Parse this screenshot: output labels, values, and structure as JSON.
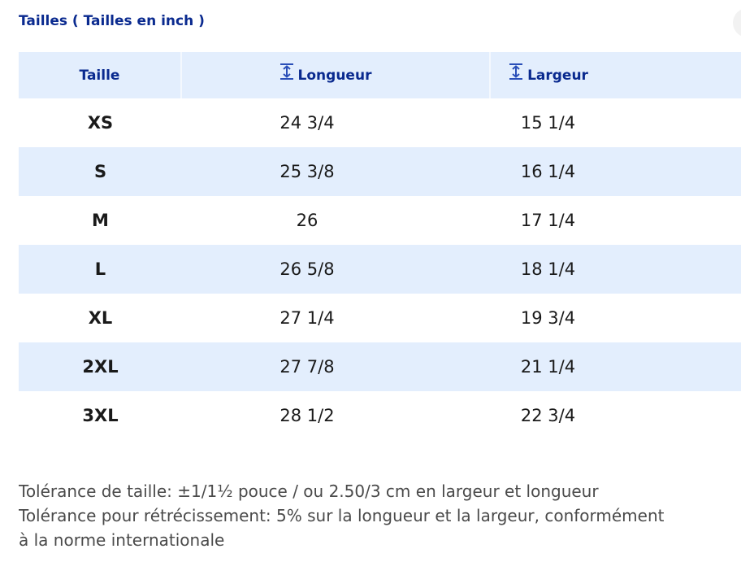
{
  "title": "Tailles ( Tailles en inch )",
  "table": {
    "headers": {
      "size": "Taille",
      "length": "Longueur",
      "width": "Largeur"
    },
    "header_icon": "vertical-measure-icon",
    "rows": [
      {
        "size": "XS",
        "length": "24 3/4",
        "width": "15 1/4"
      },
      {
        "size": "S",
        "length": "25 3/8",
        "width": "16 1/4"
      },
      {
        "size": "M",
        "length": "26",
        "width": "17 1/4"
      },
      {
        "size": "L",
        "length": "26 5/8",
        "width": "18 1/4"
      },
      {
        "size": "XL",
        "length": "27 1/4",
        "width": "19 3/4"
      },
      {
        "size": "2XL",
        "length": "27 7/8",
        "width": "21 1/4"
      },
      {
        "size": "3XL",
        "length": "28 1/2",
        "width": "22 3/4"
      }
    ]
  },
  "notes": {
    "line1": "Tolérance de taille: ±1/1½ pouce / ou 2.50/3 cm en largeur et longueur",
    "line2": "Tolérance pour rétrécissement: 5% sur la longueur et la largeur, conformément",
    "line3": "à la norme internationale"
  },
  "colors": {
    "accent": "#0a2a8f",
    "row_tint": "#e3eefd"
  }
}
